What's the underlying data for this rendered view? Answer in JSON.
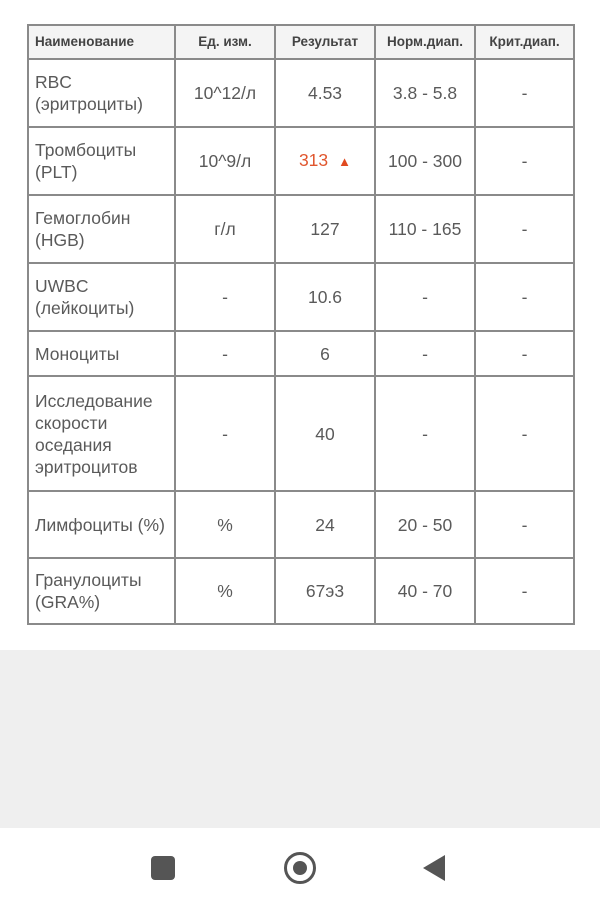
{
  "table": {
    "headers": [
      "Наименование",
      "Ед. изм.",
      "Результат",
      "Норм.диап.",
      "Крит.диап."
    ],
    "rows": [
      {
        "name": "RBC (эритроциты)",
        "unit": "10^12/л",
        "result": "4.53",
        "norm": "3.8 - 5.8",
        "crit": "-"
      },
      {
        "name": "Тромбоциты (PLT)",
        "unit": "10^9/л",
        "result": "313",
        "flag": "▲",
        "norm": "100 - 300",
        "crit": "-"
      },
      {
        "name": "Гемоглобин (HGB)",
        "unit": "г/л",
        "result": "127",
        "norm": "110 - 165",
        "crit": "-"
      },
      {
        "name": "UWBC (лейкоциты)",
        "unit": "-",
        "result": "10.6",
        "norm": "-",
        "crit": "-"
      },
      {
        "name": "Моноциты",
        "unit": "-",
        "result": "6",
        "norm": "-",
        "crit": "-"
      },
      {
        "name": "Исследование скорости оседания эритроцитов",
        "unit": "-",
        "result": "40",
        "norm": "-",
        "crit": "-"
      },
      {
        "name": "Лимфоциты (%)",
        "unit": "%",
        "result": "24",
        "norm": "20 - 50",
        "crit": "-"
      },
      {
        "name": "Гранулоциты (GRA%)",
        "unit": "%",
        "result": "67э3",
        "norm": "40 - 70",
        "crit": "-"
      }
    ]
  },
  "colors": {
    "flag": "#e0562e",
    "border": "#8a8a8a"
  },
  "navbar": {
    "icons": [
      "recents-square-icon",
      "home-circle-icon",
      "back-triangle-icon"
    ]
  }
}
